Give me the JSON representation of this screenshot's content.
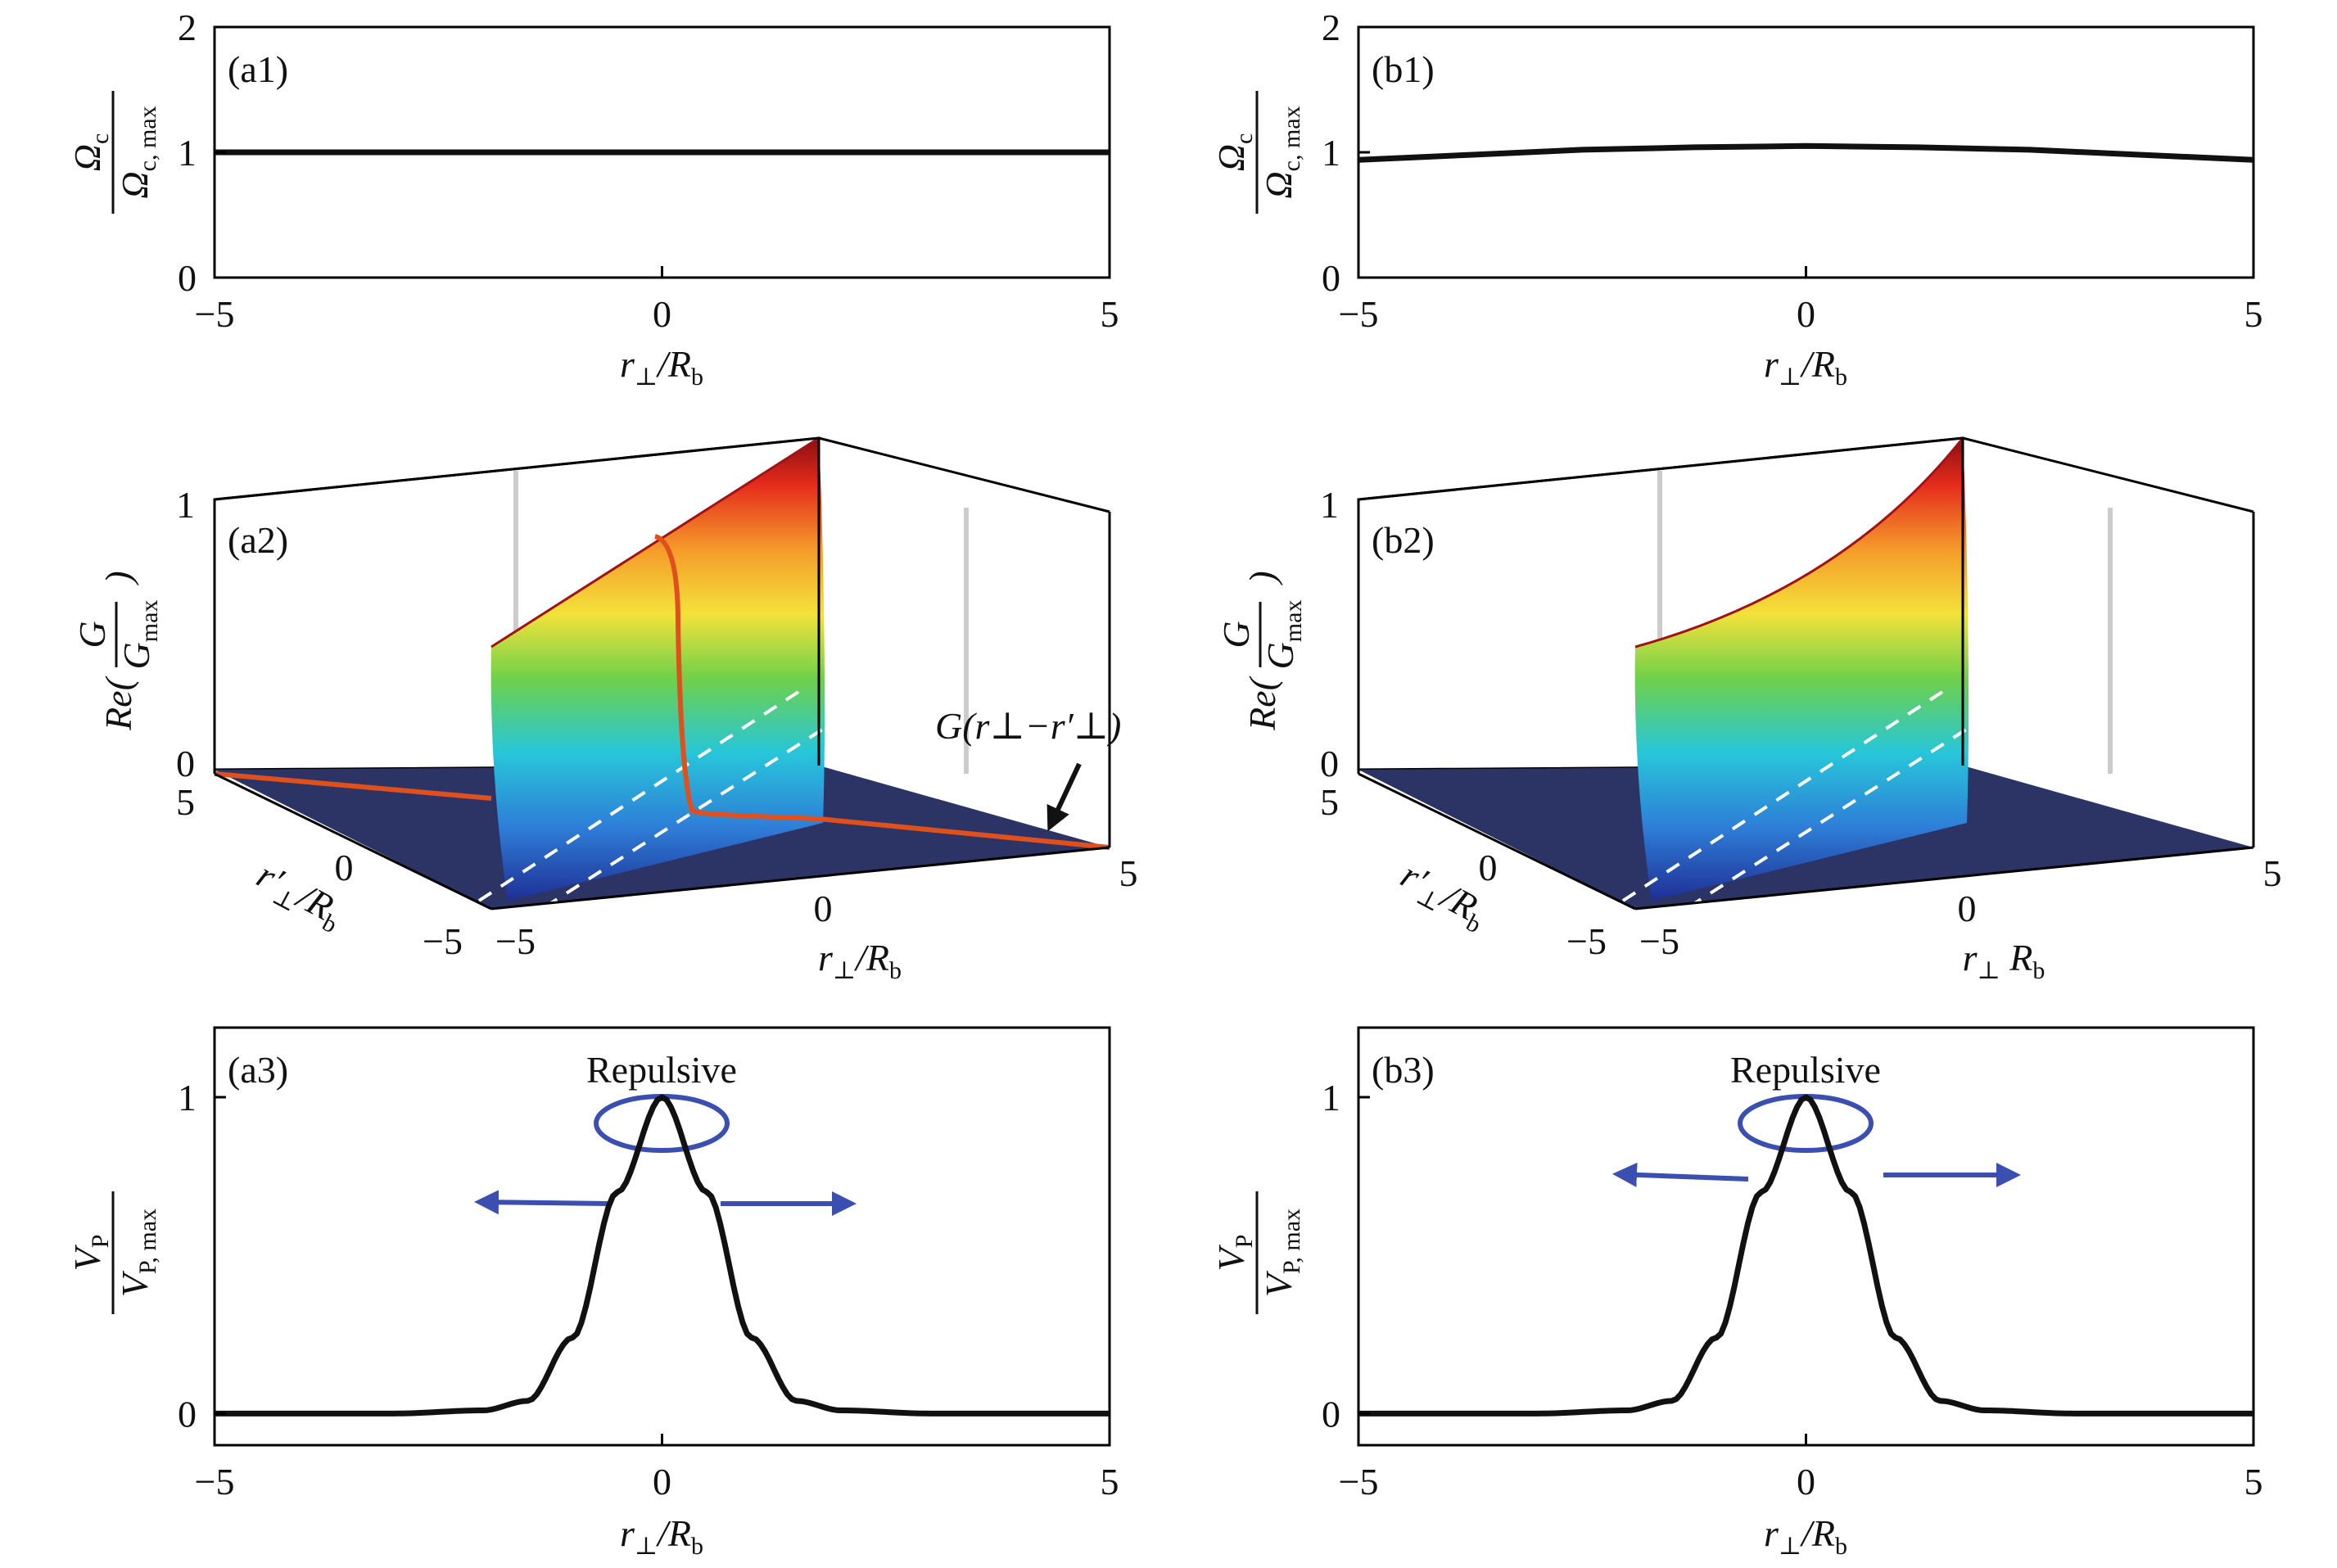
{
  "figure": {
    "panels": {
      "a1": "(a1)",
      "b1": "(b1)",
      "a2": "(a2)",
      "b2": "(b2)",
      "a3": "(a3)",
      "b3": "(b3)"
    },
    "annotations": {
      "repulsive_a": "Repulsive",
      "repulsive_b": "Repulsive",
      "green_function": "G(r⊥−r′⊥)"
    }
  },
  "colors": {
    "curve": "#111111",
    "floor": "#2c3466",
    "orange_line": "#e0501c",
    "arrow": "#3a4fb0",
    "grid": "#cccccc"
  },
  "chart_data": [
    {
      "id": "a1",
      "type": "line",
      "xlim": [
        -5,
        5
      ],
      "ylim": [
        0,
        2
      ],
      "xticks": [
        -5,
        0,
        5
      ],
      "yticks": [
        0,
        1,
        2
      ],
      "xlabel": "r⊥/Rb",
      "ylabel": "Ωc / Ωc, max",
      "series": [
        {
          "x": [
            -5,
            -2.5,
            0,
            2.5,
            5
          ],
          "values": [
            1,
            1,
            1,
            1,
            1
          ]
        }
      ]
    },
    {
      "id": "b1",
      "type": "line",
      "xlim": [
        -5,
        5
      ],
      "ylim": [
        0,
        2
      ],
      "xticks": [
        -5,
        0,
        5
      ],
      "yticks": [
        0,
        1,
        2
      ],
      "xlabel": "r⊥/Rb",
      "ylabel": "Ωc / Ωc, max",
      "series": [
        {
          "x": [
            -5,
            -3.75,
            -2.5,
            -1.25,
            0,
            1.25,
            2.5,
            3.75,
            5
          ],
          "values": [
            0.94,
            0.98,
            1.02,
            1.04,
            1.05,
            1.04,
            1.02,
            0.98,
            0.94
          ]
        }
      ]
    },
    {
      "id": "a2",
      "type": "surface",
      "xlim": [
        -5,
        5
      ],
      "ylim": [
        -5,
        5
      ],
      "zlim": [
        0,
        1
      ],
      "xticks": [
        -5,
        0,
        5
      ],
      "yticks": [
        -5,
        0,
        5
      ],
      "zticks": [
        0,
        1
      ],
      "xlabel": "r⊥/Rb",
      "ylabel": "r′⊥/Rb",
      "zlabel": "Re(G/Gmax)",
      "ridge": {
        "height_near": 0.68,
        "height_far": 1.0
      }
    },
    {
      "id": "b2",
      "type": "surface",
      "xlim": [
        -5,
        5
      ],
      "ylim": [
        -5,
        5
      ],
      "zlim": [
        0,
        1
      ],
      "xticks": [
        -5,
        0,
        5
      ],
      "yticks": [
        -5,
        0,
        5
      ],
      "zticks": [
        0,
        1
      ],
      "xlabel": "r⊥ Rb",
      "ylabel": "r′⊥/Rb",
      "zlabel": "Re(G/Gmax)",
      "ridge": {
        "height_near": 0.68,
        "height_far": 1.0
      }
    },
    {
      "id": "a3",
      "type": "line",
      "xlim": [
        -5,
        5
      ],
      "ylim": [
        -0.1,
        1.22
      ],
      "xticks": [
        -5,
        0,
        5
      ],
      "yticks": [
        0,
        1
      ],
      "xlabel": "r⊥/Rb",
      "ylabel": "VP / VP, max",
      "series": [
        {
          "x": [
            -5,
            -3,
            -2,
            -1.5,
            -1,
            -0.5,
            0,
            0.5,
            1,
            1.5,
            2,
            3,
            5
          ],
          "values": [
            0,
            0,
            0.01,
            0.04,
            0.24,
            0.7,
            1.0,
            0.7,
            0.24,
            0.04,
            0.01,
            0,
            0
          ]
        }
      ]
    },
    {
      "id": "b3",
      "type": "line",
      "xlim": [
        -5,
        5
      ],
      "ylim": [
        -0.1,
        1.22
      ],
      "xticks": [
        -5,
        0,
        5
      ],
      "yticks": [
        0,
        1
      ],
      "xlabel": "r⊥/Rb",
      "ylabel": "VP / VP, max",
      "series": [
        {
          "x": [
            -5,
            -3,
            -2,
            -1.5,
            -1,
            -0.5,
            0,
            0.5,
            1,
            1.5,
            2,
            3,
            5
          ],
          "values": [
            0,
            0,
            0.01,
            0.04,
            0.24,
            0.7,
            1.0,
            0.7,
            0.24,
            0.04,
            0.01,
            0,
            0
          ]
        }
      ]
    }
  ]
}
